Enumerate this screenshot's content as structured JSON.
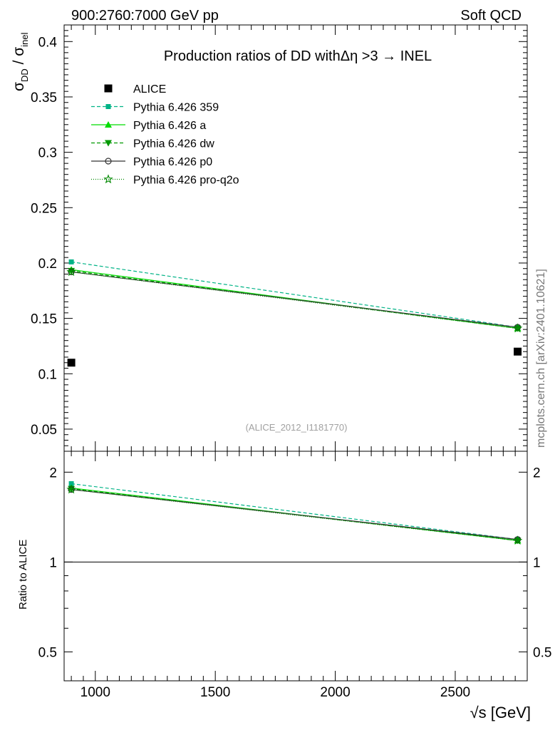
{
  "header": {
    "left": "900:2760:7000 GeV pp",
    "right": "Soft QCD"
  },
  "side_label": "mcplots.cern.ch [arXiv:2401.10621]",
  "chart_data": [
    {
      "type": "line",
      "title": "Production ratios of DD with",
      "title_tail": "Δη >3 → INEL",
      "ylabel": {
        "main": "σ",
        "sub1": "DD",
        "sep": " / σ",
        "sub2": "inel"
      },
      "watermark": "(ALICE_2012_I1181770)",
      "xlim": [
        870,
        2800
      ],
      "ylim": [
        0.03,
        0.415
      ],
      "yticks": [
        0.05,
        0.1,
        0.15,
        0.2,
        0.25,
        0.3,
        0.35,
        0.4
      ],
      "ytick_labels": [
        "0.05",
        "0.1",
        "0.15",
        "0.2",
        "0.25",
        "0.3",
        "0.35",
        "0.4"
      ],
      "legend_position": "top-left",
      "x": [
        900,
        2760
      ],
      "series": [
        {
          "name": "ALICE",
          "values": [
            0.11,
            0.12
          ],
          "color": "#000000",
          "marker": "square",
          "dash": "none"
        },
        {
          "name": "Pythia 6.426 359",
          "values": [
            0.201,
            0.142
          ],
          "color": "#00b386",
          "marker": "square-small",
          "dash": "5,3"
        },
        {
          "name": "Pythia 6.426 a",
          "values": [
            0.194,
            0.141
          ],
          "color": "#00dd00",
          "marker": "triangle-up",
          "dash": ""
        },
        {
          "name": "Pythia 6.426 dw",
          "values": [
            0.193,
            0.141
          ],
          "color": "#009900",
          "marker": "triangle-down",
          "dash": "5,3"
        },
        {
          "name": "Pythia 6.426 p0",
          "values": [
            0.192,
            0.142
          ],
          "color": "#333333",
          "marker": "circle-open",
          "dash": ""
        },
        {
          "name": "Pythia 6.426 pro-q2o",
          "values": [
            0.192,
            0.141
          ],
          "color": "#008800",
          "marker": "star-open",
          "dash": "1,2"
        }
      ]
    },
    {
      "type": "line",
      "ylabel": "Ratio to ALICE",
      "xlabel": "√s [GeV]",
      "xlim": [
        870,
        2800
      ],
      "ylim": [
        0.4,
        2.35
      ],
      "yticks": [
        0.5,
        1,
        2
      ],
      "ytick_labels": [
        "0.5",
        "1",
        "2"
      ],
      "xticks": [
        1000,
        1500,
        2000,
        2500
      ],
      "xtick_labels": [
        "1000",
        "1500",
        "2000",
        "2500"
      ],
      "reference": 1,
      "x": [
        900,
        2760
      ],
      "series": [
        {
          "name": "Pythia 6.426 359",
          "values": [
            1.83,
            1.19
          ],
          "color": "#00b386",
          "marker": "square-small",
          "dash": "5,3"
        },
        {
          "name": "Pythia 6.426 a",
          "values": [
            1.77,
            1.18
          ],
          "color": "#00dd00",
          "marker": "triangle-up",
          "dash": ""
        },
        {
          "name": "Pythia 6.426 dw",
          "values": [
            1.76,
            1.18
          ],
          "color": "#009900",
          "marker": "triangle-down",
          "dash": "5,3"
        },
        {
          "name": "Pythia 6.426 p0",
          "values": [
            1.75,
            1.19
          ],
          "color": "#333333",
          "marker": "circle-open",
          "dash": ""
        },
        {
          "name": "Pythia 6.426 pro-q2o",
          "values": [
            1.75,
            1.18
          ],
          "color": "#008800",
          "marker": "star-open",
          "dash": "1,2"
        }
      ]
    }
  ]
}
